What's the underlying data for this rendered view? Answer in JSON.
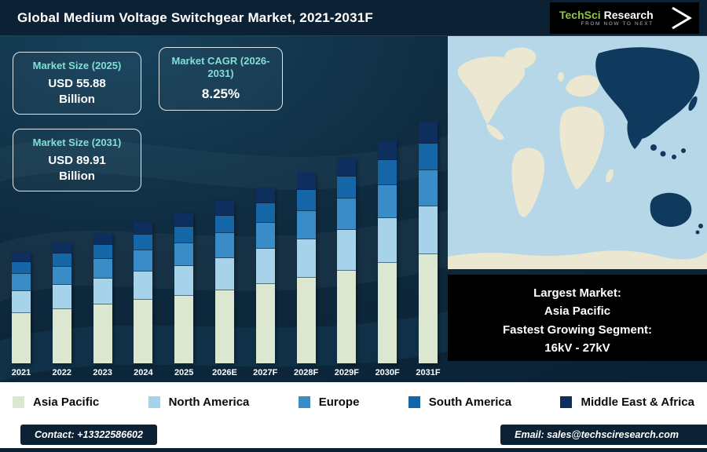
{
  "header": {
    "title": "Global Medium Voltage Switchgear Market, 2021-2031F",
    "logo": {
      "brand_primary": "TechSci",
      "brand_secondary": "Research",
      "tagline": "from NOW to NEXT"
    }
  },
  "stats": [
    {
      "label": "Market Size (2025)",
      "value": "USD 55.88",
      "unit": "Billion"
    },
    {
      "label": "Market CAGR (2026-2031)",
      "value": "8.25%",
      "unit": ""
    },
    {
      "label": "Market Size (2031)",
      "value": "USD 89.91",
      "unit": "Billion"
    }
  ],
  "highlight": {
    "lines": [
      "Largest Market:",
      "Asia Pacific",
      "Fastest Growing Segment:",
      "16kV - 27kV"
    ]
  },
  "footer": {
    "contact": "Contact: +13322586602",
    "email": "Email: sales@techsciresearch.com"
  },
  "colors": {
    "background": "#0e2a3e",
    "header_bar": "#0c2133",
    "accent_teal": "#7fe0d4",
    "map_ocean": "#b5d7e8",
    "map_land": "#ece7d0",
    "map_highlight": "#0f3a5d",
    "highlight_box": "#000000"
  },
  "chart_data": {
    "type": "bar",
    "stacked": true,
    "title": "Global Medium Voltage Switchgear Market, 2021-2031F",
    "units": "USD Billion",
    "categories": [
      "2021",
      "2022",
      "2023",
      "2024",
      "2025",
      "2026E",
      "2027F",
      "2028F",
      "2029F",
      "2030F",
      "2031F"
    ],
    "series": [
      {
        "name": "Asia Pacific",
        "color": "#dbe7d0",
        "values": [
          18.7,
          20.2,
          21.9,
          23.7,
          25.1,
          27.2,
          29.5,
          31.9,
          34.5,
          37.4,
          40.5
        ]
      },
      {
        "name": "North America",
        "color": "#a7d3ea",
        "values": [
          8.3,
          9.0,
          9.7,
          10.5,
          11.2,
          12.1,
          13.1,
          14.2,
          15.3,
          16.6,
          18.0
        ]
      },
      {
        "name": "Europe",
        "color": "#3a8cc7",
        "values": [
          6.2,
          6.7,
          7.3,
          7.9,
          8.4,
          9.1,
          9.8,
          10.6,
          11.5,
          12.5,
          13.5
        ]
      },
      {
        "name": "South America",
        "color": "#1566a7",
        "values": [
          4.6,
          4.9,
          5.3,
          5.8,
          6.1,
          6.7,
          7.2,
          7.8,
          8.4,
          9.1,
          9.9
        ]
      },
      {
        "name": "Middle East & Africa",
        "color": "#0e2f5d",
        "values": [
          3.7,
          4.0,
          4.4,
          4.7,
          5.0,
          5.4,
          5.9,
          6.4,
          6.9,
          7.5,
          8.1
        ]
      }
    ],
    "totals": [
      41.5,
      44.8,
      48.6,
      52.6,
      55.88,
      60.5,
      65.5,
      70.9,
      76.6,
      83.1,
      89.91
    ],
    "ylim": [
      0,
      95
    ],
    "grid": false,
    "legend_position": "bottom"
  }
}
